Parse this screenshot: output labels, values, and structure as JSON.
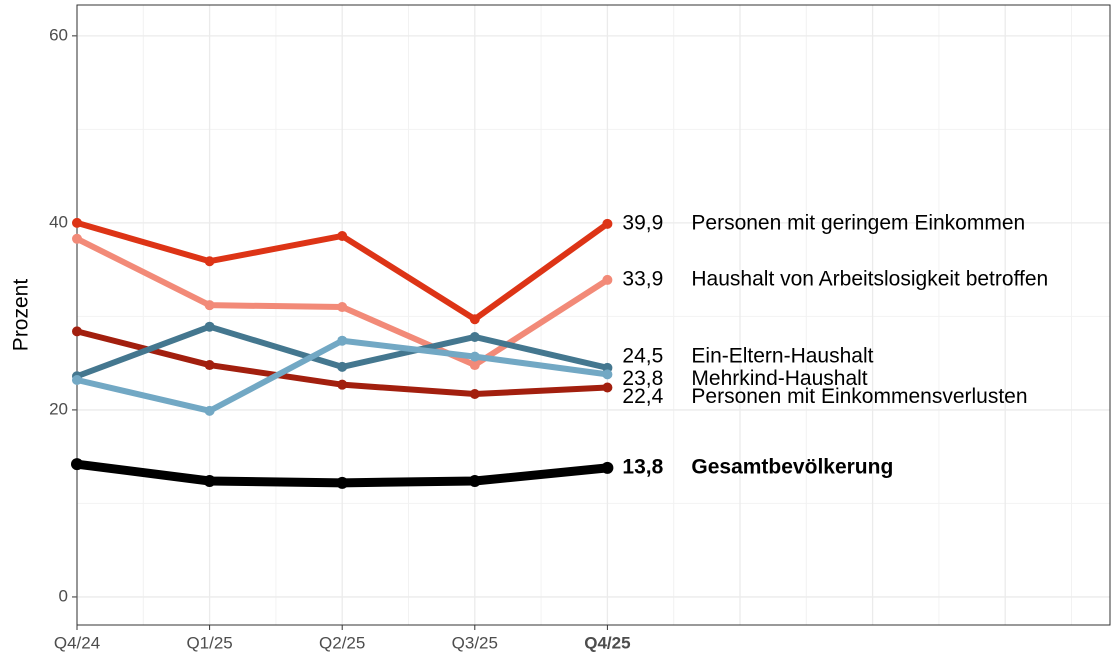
{
  "chart_data": {
    "type": "line",
    "y_label": "Prozent",
    "categories": [
      "Q4/24",
      "Q1/25",
      "Q2/25",
      "Q3/25",
      "Q4/25"
    ],
    "ylim": [
      -3,
      63.3
    ],
    "yticks": [
      0,
      20,
      40,
      60
    ],
    "y_minor_ticks": [
      10,
      30,
      50
    ],
    "grid": true,
    "series": [
      {
        "name": "Personen mit geringem Einkommen",
        "color": "#dd3416",
        "values": [
          40.0,
          35.9,
          38.6,
          29.7,
          39.9
        ],
        "value_labels": [
          null,
          null,
          null,
          null,
          "39,9"
        ]
      },
      {
        "name": "Haushalt von Arbeitslosigkeit betroffen",
        "color": "#f28a78",
        "values": [
          38.3,
          31.2,
          31.0,
          24.8,
          33.9
        ],
        "value_labels": [
          null,
          null,
          null,
          null,
          "33,9"
        ]
      },
      {
        "name": "Ein-Eltern-Haushalt",
        "color": "#44778f",
        "values": [
          23.6,
          28.9,
          24.6,
          27.8,
          24.5
        ],
        "value_labels": [
          null,
          null,
          null,
          null,
          "24,5"
        ]
      },
      {
        "name": "Mehrkind-Haushalt",
        "color": "#72a8c4",
        "values": [
          23.2,
          19.9,
          27.4,
          25.7,
          23.8
        ],
        "value_labels": [
          null,
          null,
          null,
          null,
          "23,8"
        ]
      },
      {
        "name": "Personen mit Einkommensverlusten",
        "color": "#a21f0e",
        "values": [
          28.4,
          24.8,
          22.7,
          21.7,
          22.4
        ],
        "value_labels": [
          null,
          null,
          null,
          null,
          "22,4"
        ]
      },
      {
        "name": "Gesamtbevölkerung",
        "color": "#000000",
        "values": [
          14.2,
          12.4,
          12.2,
          12.4,
          13.8
        ],
        "value_labels": [
          null,
          null,
          null,
          null,
          "13,8"
        ]
      }
    ]
  }
}
